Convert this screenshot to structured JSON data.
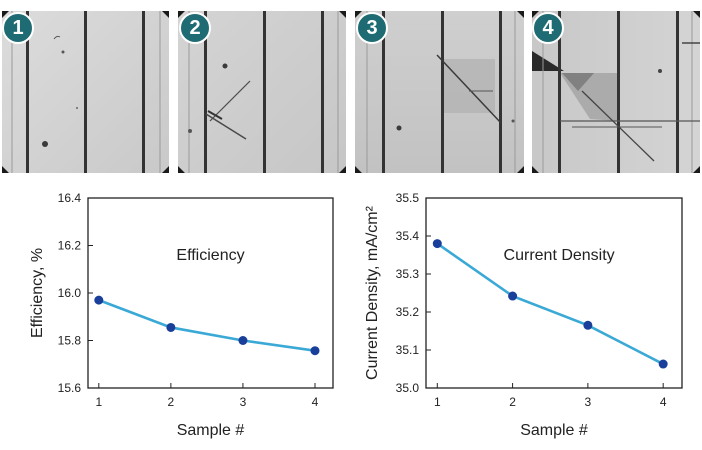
{
  "colors": {
    "badge": "#1e6b73",
    "line": "#3aa9d6",
    "marker": "#1a3f9a",
    "axis": "#222222"
  },
  "samples": [
    {
      "number": "1"
    },
    {
      "number": "2"
    },
    {
      "number": "3"
    },
    {
      "number": "4"
    }
  ],
  "chart_data": [
    {
      "type": "line",
      "title": "Efficiency",
      "xlabel": "Sample #",
      "ylabel": "Efficiency, %",
      "x": [
        1,
        2,
        3,
        4
      ],
      "values": [
        15.97,
        15.855,
        15.8,
        15.757
      ],
      "xlim": [
        0.85,
        4.25
      ],
      "ylim": [
        15.6,
        16.4
      ],
      "yticks": [
        "15.6",
        "15.8",
        "16.0",
        "16.2",
        "16.4"
      ],
      "xticks": [
        "1",
        "2",
        "3",
        "4"
      ],
      "grid": false
    },
    {
      "type": "line",
      "title": "Current Density",
      "xlabel": "Sample #",
      "ylabel": "Current Density, mA/cm²",
      "x": [
        1,
        2,
        3,
        4
      ],
      "values": [
        35.38,
        35.242,
        35.165,
        35.063
      ],
      "xlim": [
        0.85,
        4.25
      ],
      "ylim": [
        35.0,
        35.5
      ],
      "yticks": [
        "35.0",
        "35.1",
        "35.2",
        "35.3",
        "35.4",
        "35.5"
      ],
      "xticks": [
        "1",
        "2",
        "3",
        "4"
      ],
      "grid": false
    }
  ]
}
